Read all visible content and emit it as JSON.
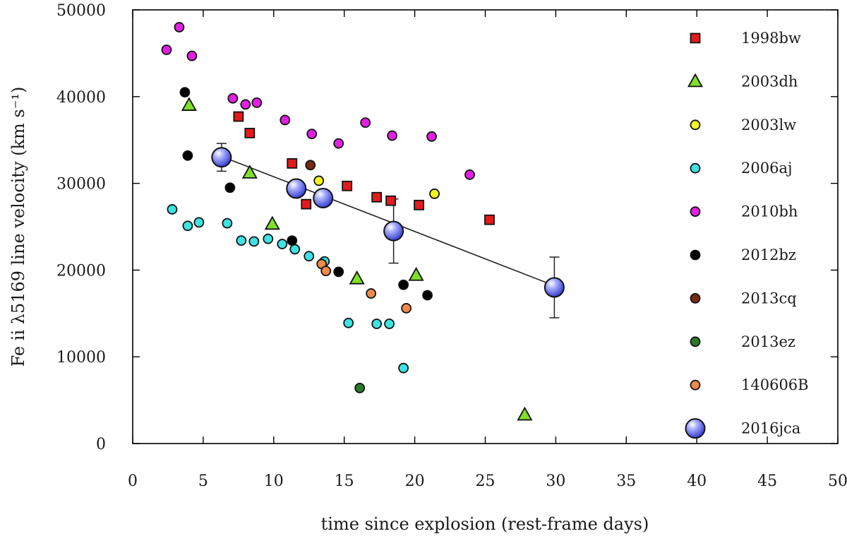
{
  "chart_data": {
    "type": "scatter",
    "xlabel": "time since explosion (rest-frame days)",
    "ylabel": "Fe ii λ5169 line velocity (km s⁻¹)",
    "xlim": [
      0,
      50
    ],
    "ylim": [
      0,
      50000
    ],
    "xticks": [
      "0",
      "5",
      "10",
      "15",
      "20",
      "25",
      "30",
      "35",
      "40",
      "45",
      "50"
    ],
    "yticks": [
      "0",
      "10000",
      "20000",
      "30000",
      "40000",
      "50000"
    ],
    "grid": false,
    "legend_position": "right (inside)",
    "series": [
      {
        "name": "1998bw",
        "marker": "square",
        "color": "#e41a1c",
        "points": [
          [
            7.5,
            37700
          ],
          [
            8.3,
            35800
          ],
          [
            11.3,
            32300
          ],
          [
            12.3,
            27600
          ],
          [
            15.2,
            29700
          ],
          [
            17.3,
            28400
          ],
          [
            18.3,
            28000
          ],
          [
            20.3,
            27500
          ],
          [
            25.3,
            25800
          ]
        ]
      },
      {
        "name": "2003dh",
        "marker": "triangle",
        "color": "#7fe02b",
        "points": [
          [
            4.0,
            39000
          ],
          [
            8.3,
            31200
          ],
          [
            9.9,
            25300
          ],
          [
            15.9,
            19000
          ],
          [
            20.1,
            19400
          ],
          [
            27.8,
            3300
          ]
        ]
      },
      {
        "name": "2003lw",
        "marker": "circle",
        "color": "#f5f51f",
        "points": [
          [
            13.2,
            30300
          ],
          [
            21.4,
            28800
          ]
        ]
      },
      {
        "name": "2006aj",
        "marker": "circle",
        "color": "#3de3e3",
        "points": [
          [
            2.8,
            27000
          ],
          [
            3.9,
            25100
          ],
          [
            4.7,
            25500
          ],
          [
            6.7,
            25400
          ],
          [
            7.7,
            23400
          ],
          [
            8.6,
            23300
          ],
          [
            9.6,
            23600
          ],
          [
            10.6,
            23000
          ],
          [
            11.5,
            22400
          ],
          [
            12.5,
            21600
          ],
          [
            13.6,
            21000
          ],
          [
            15.3,
            13900
          ],
          [
            17.3,
            13800
          ],
          [
            18.2,
            13800
          ],
          [
            19.2,
            8700
          ]
        ]
      },
      {
        "name": "2010bh",
        "marker": "circle",
        "color": "#e31fe3",
        "points": [
          [
            2.4,
            45400
          ],
          [
            3.3,
            48000
          ],
          [
            4.2,
            44700
          ],
          [
            7.1,
            39800
          ],
          [
            8.0,
            39100
          ],
          [
            8.8,
            39300
          ],
          [
            10.8,
            37300
          ],
          [
            12.7,
            35700
          ],
          [
            14.6,
            34600
          ],
          [
            16.5,
            37000
          ],
          [
            18.4,
            35500
          ],
          [
            21.2,
            35400
          ],
          [
            23.9,
            31000
          ]
        ]
      },
      {
        "name": "2012bz",
        "marker": "circle",
        "color": "#000000",
        "points": [
          [
            3.7,
            40500
          ],
          [
            3.9,
            33200
          ],
          [
            6.9,
            29500
          ],
          [
            11.3,
            23400
          ],
          [
            14.6,
            19800
          ],
          [
            19.2,
            18300
          ],
          [
            20.9,
            17100
          ]
        ]
      },
      {
        "name": "2013cq",
        "marker": "circle",
        "color": "#7a2a12",
        "points": [
          [
            12.6,
            32100
          ]
        ]
      },
      {
        "name": "2013ez",
        "marker": "circle",
        "color": "#2a7a2a",
        "points": [
          [
            16.1,
            6400
          ]
        ]
      },
      {
        "name": "140606B",
        "marker": "circle",
        "color": "#f0894a",
        "points": [
          [
            13.4,
            20700
          ],
          [
            13.7,
            19900
          ],
          [
            16.9,
            17300
          ],
          [
            19.4,
            15600
          ]
        ]
      },
      {
        "name": "2016jca",
        "marker": "large-sphere",
        "color": "#5a64f0",
        "points": [
          [
            6.3,
            33000
          ],
          [
            11.6,
            29400
          ],
          [
            13.5,
            28300
          ],
          [
            18.5,
            24500
          ],
          [
            29.9,
            18000
          ]
        ],
        "error_low": [
          31400,
          null,
          null,
          20800,
          14500
        ],
        "error_high": [
          34600,
          null,
          null,
          28200,
          21500
        ],
        "fit_line": [
          [
            6.3,
            33100
          ],
          [
            29.9,
            18200
          ]
        ]
      }
    ]
  }
}
